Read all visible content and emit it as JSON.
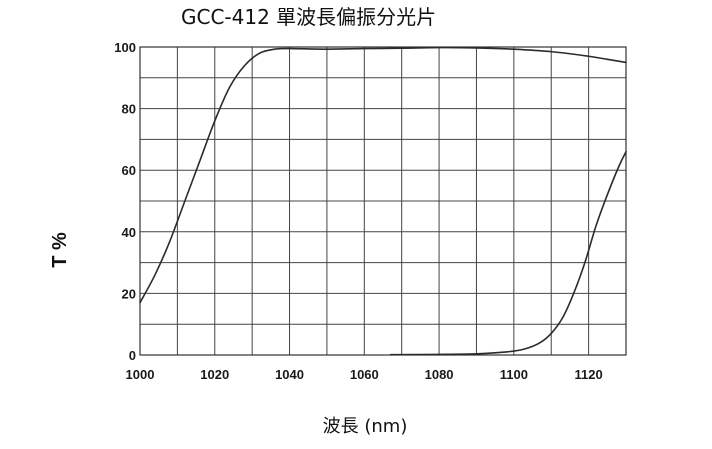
{
  "chart_data": {
    "type": "line",
    "title": "GCC-412 單波長偏振分光片",
    "xlabel": "波長 (nm)",
    "ylabel": "T %",
    "xlim": [
      1000,
      1130
    ],
    "ylim": [
      0,
      100
    ],
    "x_ticks": [
      1000,
      1020,
      1040,
      1060,
      1080,
      1100,
      1120
    ],
    "y_ticks": [
      0,
      20,
      40,
      60,
      80,
      100
    ],
    "x_grid_step": 10,
    "y_grid_step": 10,
    "grid": true,
    "series": [
      {
        "x": [
          1000,
          1004,
          1008,
          1012,
          1016,
          1020,
          1024,
          1028,
          1032,
          1036,
          1040,
          1050,
          1060,
          1070,
          1080,
          1090,
          1100,
          1110,
          1120,
          1125,
          1130
        ],
        "y": [
          17,
          26,
          37,
          50,
          63,
          76,
          87,
          94,
          98,
          99.3,
          99.5,
          99.3,
          99.5,
          99.6,
          99.8,
          99.7,
          99.3,
          98.5,
          97,
          96,
          95
        ]
      },
      {
        "x": [
          1067,
          1080,
          1090,
          1098,
          1103,
          1107,
          1110,
          1113,
          1116,
          1119,
          1122,
          1125,
          1128,
          1130
        ],
        "y": [
          0.1,
          0.2,
          0.4,
          1,
          2,
          4,
          7,
          12,
          20,
          30,
          42,
          52,
          61,
          66
        ]
      }
    ]
  }
}
